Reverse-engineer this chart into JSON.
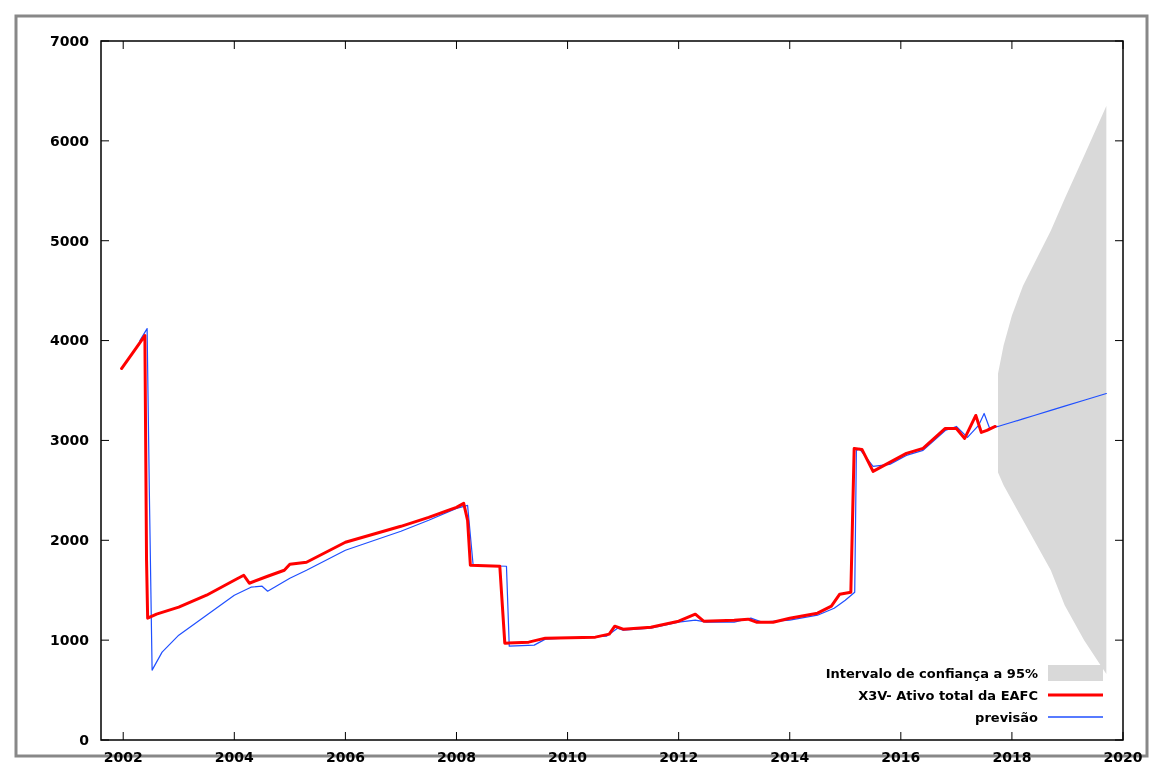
{
  "chart_data": {
    "type": "line",
    "xlim": [
      2001.6,
      2020
    ],
    "ylim": [
      0,
      7000
    ],
    "xticks": [
      2002,
      2004,
      2006,
      2008,
      2010,
      2012,
      2014,
      2016,
      2018,
      2020
    ],
    "yticks": [
      0,
      1000,
      2000,
      3000,
      4000,
      5000,
      6000,
      7000
    ],
    "grid": false,
    "legend": "bottom right",
    "line_style": "solid",
    "marker": "none",
    "annotations": [
      "Intervalo de confiança a 95%"
    ],
    "series": [
      {
        "name": "X3V- Ativo total da EAFC",
        "color": "#ff0000",
        "x": [
          2001.97,
          2002.2,
          2002.39,
          2002.42,
          2002.44,
          2002.6,
          2003,
          2003.5,
          2004,
          2004.17,
          2004.27,
          2004.6,
          2004.9,
          2005.0,
          2005.3,
          2006,
          2006.5,
          2007,
          2007.5,
          2008.0,
          2008.13,
          2008.2,
          2008.25,
          2008.78,
          2008.87,
          2009.3,
          2009.6,
          2010.5,
          2010.75,
          2010.85,
          2011,
          2011.5,
          2012,
          2012.3,
          2012.45,
          2013,
          2013.25,
          2013.4,
          2013.7,
          2014,
          2014.5,
          2014.75,
          2014.9,
          2015.1,
          2015.16,
          2015.3,
          2015.5,
          2015.8,
          2016.1,
          2016.4,
          2016.8,
          2017.0,
          2017.15,
          2017.35,
          2017.45,
          2017.55,
          2017.7
        ],
        "values": [
          3720,
          3900,
          4050,
          1800,
          1220,
          1260,
          1330,
          1450,
          1600,
          1650,
          1570,
          1640,
          1700,
          1760,
          1780,
          1980,
          2060,
          2140,
          2230,
          2330,
          2370,
          2200,
          1750,
          1740,
          970,
          980,
          1020,
          1030,
          1060,
          1140,
          1110,
          1130,
          1190,
          1260,
          1190,
          1200,
          1210,
          1180,
          1180,
          1220,
          1270,
          1340,
          1460,
          1480,
          2920,
          2910,
          2690,
          2780,
          2870,
          2920,
          3120,
          3120,
          3020,
          3250,
          3080,
          3100,
          3140
        ]
      },
      {
        "name": "previsão",
        "color": "#1f4fff",
        "x": [
          2002.3,
          2002.43,
          2002.47,
          2002.52,
          2002.7,
          2003,
          2003.5,
          2004,
          2004.3,
          2004.5,
          2004.6,
          2005,
          2005.3,
          2006,
          2007,
          2007.5,
          2008,
          2008.2,
          2008.3,
          2008.9,
          2008.95,
          2009.4,
          2009.6,
          2010.7,
          2010.9,
          2011,
          2011.5,
          2012,
          2012.3,
          2012.5,
          2013,
          2013.3,
          2013.5,
          2014,
          2014.5,
          2014.8,
          2015.0,
          2015.17,
          2015.2,
          2015.25,
          2015.5,
          2015.8,
          2016.1,
          2016.4,
          2016.8,
          2017.0,
          2017.2,
          2017.4,
          2017.5,
          2017.6,
          2017.75,
          2017.85,
          2018.0,
          2018.2,
          2018.4,
          2018.7,
          2018.95,
          2019.3,
          2019.7
        ],
        "values": [
          4000,
          4120,
          2500,
          700,
          880,
          1050,
          1250,
          1450,
          1530,
          1540,
          1490,
          1620,
          1700,
          1900,
          2090,
          2200,
          2320,
          2350,
          1750,
          1740,
          940,
          950,
          1010,
          1040,
          1120,
          1100,
          1120,
          1180,
          1200,
          1180,
          1180,
          1220,
          1180,
          1200,
          1250,
          1320,
          1400,
          1480,
          2900,
          2920,
          2740,
          2760,
          2850,
          2900,
          3100,
          3140,
          3030,
          3150,
          3270,
          3120,
          3140,
          3157,
          3182,
          3216,
          3250,
          3301,
          3343,
          3402,
          3470
        ],
        "lower": [
          null,
          null,
          null,
          null,
          null,
          null,
          null,
          null,
          null,
          null,
          null,
          null,
          null,
          null,
          null,
          null,
          null,
          null,
          null,
          null,
          null,
          null,
          null,
          null,
          null,
          null,
          null,
          null,
          null,
          null,
          null,
          null,
          null,
          null,
          null,
          null,
          null,
          null,
          null,
          null,
          null,
          null,
          null,
          null,
          null,
          null,
          null,
          null,
          null,
          null,
          2680,
          2550,
          2400,
          2200,
          2000,
          1700,
          1350,
          1000,
          660
        ],
        "upper": [
          null,
          null,
          null,
          null,
          null,
          null,
          null,
          null,
          null,
          null,
          null,
          null,
          null,
          null,
          null,
          null,
          null,
          null,
          null,
          null,
          null,
          null,
          null,
          null,
          null,
          null,
          null,
          null,
          null,
          null,
          null,
          null,
          null,
          null,
          null,
          null,
          null,
          null,
          null,
          null,
          null,
          null,
          null,
          null,
          null,
          null,
          null,
          null,
          null,
          null,
          3670,
          3950,
          4250,
          4550,
          4770,
          5100,
          5420,
          5850,
          6350
        ]
      }
    ]
  }
}
